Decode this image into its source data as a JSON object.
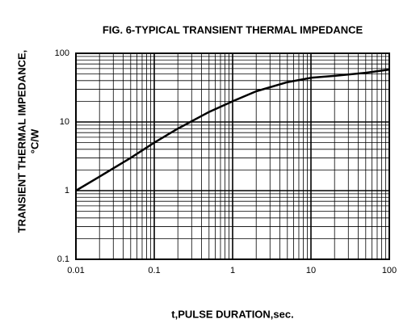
{
  "chart_data": {
    "type": "line",
    "title": "FIG. 6-TYPICAL TRANSIENT THERMAL IMPEDANCE",
    "x_label": "t,PULSE DURATION,sec.",
    "y_label": [
      "TRANSIENT THERMAL IMPEDANCE,",
      "°C/W"
    ],
    "x": [
      0.01,
      0.02,
      0.05,
      0.1,
      0.2,
      0.5,
      1,
      2,
      5,
      10,
      20,
      50,
      100
    ],
    "series": [
      {
        "color": "#000000",
        "values": [
          1,
          1.6,
          3,
          5,
          8,
          14,
          20,
          28,
          38,
          44,
          47,
          52,
          58
        ]
      }
    ],
    "xlim": [
      0.01,
      100
    ],
    "ylim": [
      0.1,
      100
    ],
    "xticks": [
      0.01,
      0.1,
      1,
      10,
      100
    ],
    "yticks": [
      0.1,
      1,
      10,
      100
    ],
    "x_log": true,
    "y_log": true,
    "grid": true,
    "minor_grid": true
  }
}
